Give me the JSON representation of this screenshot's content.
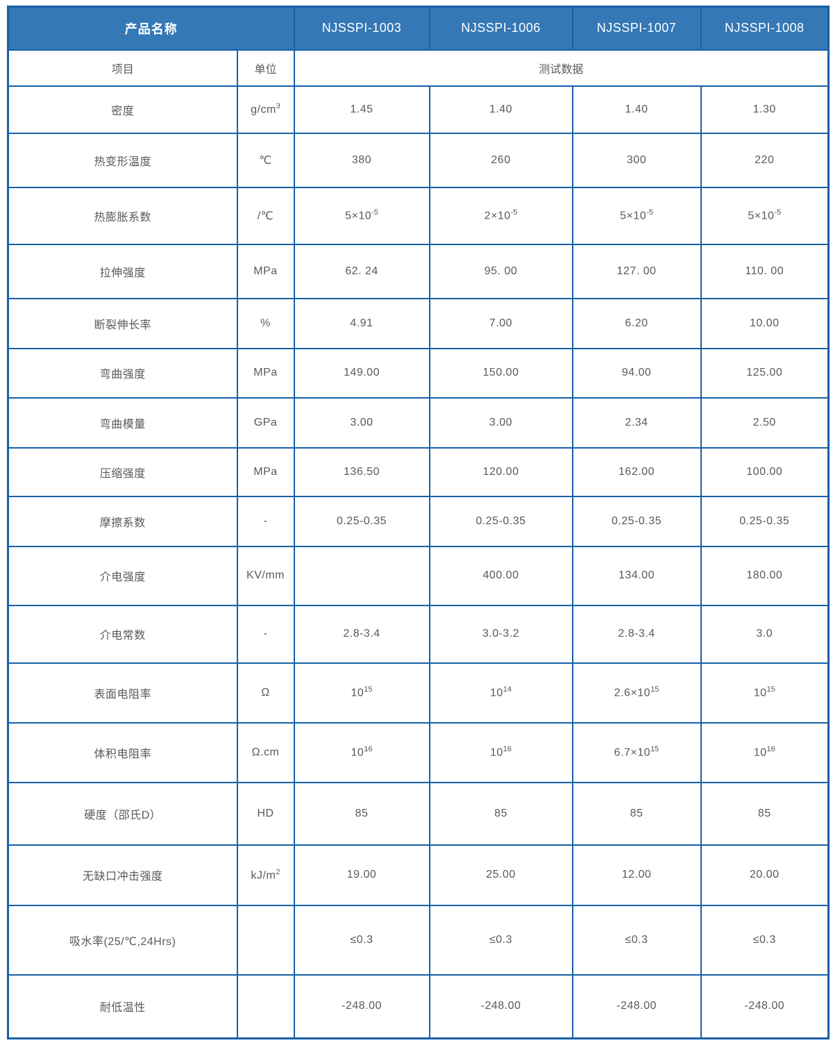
{
  "theme": {
    "header_bg": "#3478b6",
    "border": "#1660a8",
    "body_text": "#58595b",
    "header_text": "#ffffff"
  },
  "table": {
    "header": {
      "product_name_label": "产品名称",
      "products": [
        "NJSSPI-1003",
        "NJSSPI-1006",
        "NJSSPI-1007",
        "NJSSPI-1008"
      ]
    },
    "subheader": {
      "item_label": "项目",
      "unit_label": "单位",
      "test_data_label": "测试数据"
    },
    "rows": [
      {
        "item": "密度",
        "unit": "g/cm^3",
        "values": [
          "1.45",
          "1.40",
          "1.40",
          "1.30"
        ]
      },
      {
        "item": "热变形温度",
        "unit": "℃",
        "values": [
          "380",
          "260",
          "300",
          "220"
        ]
      },
      {
        "item": "热膨胀系数",
        "unit": "/℃",
        "values": [
          "5×10^-5",
          "2×10^-5",
          "5×10^-5",
          "5×10^-5"
        ]
      },
      {
        "item": "拉伸强度",
        "unit": "MPa",
        "values": [
          "62. 24",
          "95. 00",
          "127. 00",
          "110. 00"
        ]
      },
      {
        "item": "断裂伸长率",
        "unit": "%",
        "values": [
          "4.91",
          "7.00",
          "6.20",
          "10.00"
        ]
      },
      {
        "item": "弯曲强度",
        "unit": "MPa",
        "values": [
          "149.00",
          "150.00",
          "94.00",
          "125.00"
        ]
      },
      {
        "item": "弯曲模量",
        "unit": "GPa",
        "values": [
          "3.00",
          "3.00",
          "2.34",
          "2.50"
        ]
      },
      {
        "item": "压缩强度",
        "unit": "MPa",
        "values": [
          "136.50",
          "120.00",
          "162.00",
          "100.00"
        ]
      },
      {
        "item": "摩擦系数",
        "unit": "-",
        "values": [
          "0.25-0.35",
          "0.25-0.35",
          "0.25-0.35",
          "0.25-0.35"
        ]
      },
      {
        "item": "介电强度",
        "unit": "KV/mm",
        "values": [
          "",
          "400.00",
          "134.00",
          "180.00"
        ]
      },
      {
        "item": "介电常数",
        "unit": "-",
        "values": [
          "2.8-3.4",
          "3.0-3.2",
          "2.8-3.4",
          "3.0"
        ]
      },
      {
        "item": "表面电阻率",
        "unit": "Ω",
        "values": [
          "10^15",
          "10^14",
          "2.6×10^15",
          "10^15"
        ]
      },
      {
        "item": "体积电阻率",
        "unit": "Ω.cm",
        "values": [
          "10^16",
          "10^16",
          "6.7×10^15",
          "10^16"
        ]
      },
      {
        "item": "硬度（邵氏D）",
        "unit": "HD",
        "values": [
          "85",
          "85",
          "85",
          "85"
        ]
      },
      {
        "item": "无缺口冲击强度",
        "unit": "kJ/m^2",
        "values": [
          "19.00",
          "25.00",
          "12.00",
          "20.00"
        ]
      },
      {
        "item": "吸水率(25/℃,24Hrs)",
        "unit": "",
        "values": [
          "≤0.3",
          "≤0.3",
          "≤0.3",
          "≤0.3"
        ]
      },
      {
        "item": "耐低温性",
        "unit": "",
        "values": [
          "-248.00",
          "-248.00",
          "-248.00",
          "-248.00"
        ]
      }
    ]
  }
}
